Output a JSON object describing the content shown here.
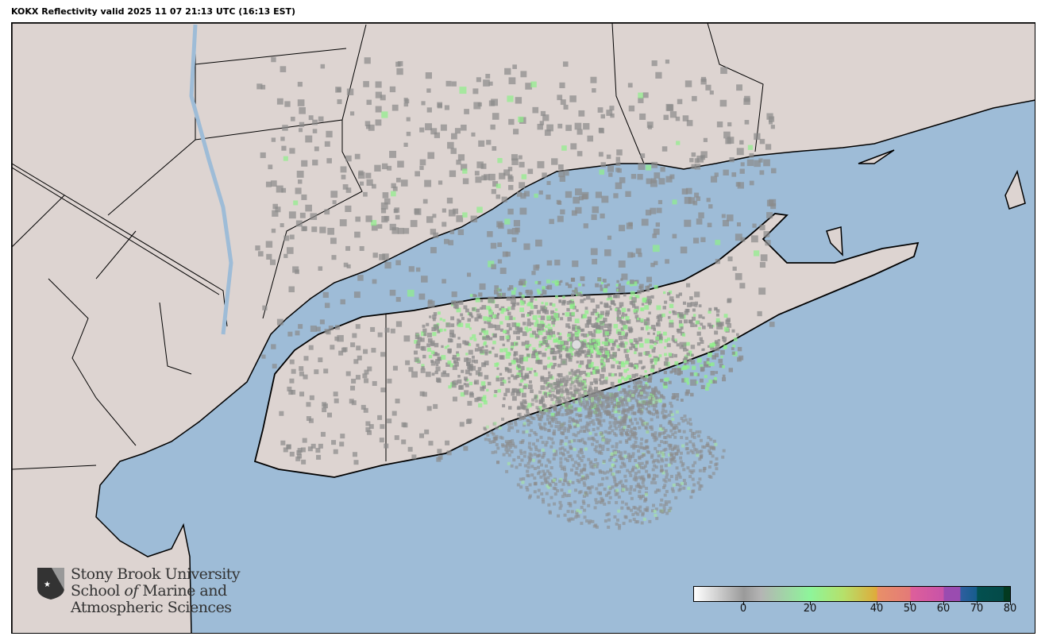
{
  "title": "KOKX Reflectivity valid 2025 11 07 21:13 UTC (16:13 EST)",
  "colors": {
    "ocean": "#9ebcd7",
    "land": "#ddd4d1",
    "border": "#000000",
    "echo_gray": "#8a8a8a",
    "echo_green": "#8ef08a"
  },
  "logo": {
    "line1": "Stony Brook University",
    "line2a": "School ",
    "line2b": "of",
    "line2c": " Marine and",
    "line3": "Atmospheric Sciences"
  },
  "colorbar": {
    "range": [
      -15,
      80
    ],
    "ticks": [
      "0",
      "20",
      "40",
      "50",
      "60",
      "70",
      "80"
    ],
    "stops": [
      {
        "v": -15,
        "c": "#ffffff"
      },
      {
        "v": 0,
        "c": "#9a9a9a"
      },
      {
        "v": 5,
        "c": "#b4b4b4"
      },
      {
        "v": 20,
        "c": "#8ef59a"
      },
      {
        "v": 30,
        "c": "#b6e06a"
      },
      {
        "v": 40,
        "c": "#e0aa3a"
      },
      {
        "v": 40.1,
        "c": "#e89068"
      },
      {
        "v": 50,
        "c": "#e47a78"
      },
      {
        "v": 50.1,
        "c": "#de5f9a"
      },
      {
        "v": 60,
        "c": "#c853a8"
      },
      {
        "v": 60.1,
        "c": "#9a4cb0"
      },
      {
        "v": 65,
        "c": "#9a4cb0"
      },
      {
        "v": 65.1,
        "c": "#2f5ea0"
      },
      {
        "v": 70,
        "c": "#165d8c"
      },
      {
        "v": 70.1,
        "c": "#035050"
      },
      {
        "v": 78,
        "c": "#044a48"
      },
      {
        "v": 78.1,
        "c": "#033a20"
      },
      {
        "v": 80,
        "c": "#033a20"
      }
    ]
  }
}
